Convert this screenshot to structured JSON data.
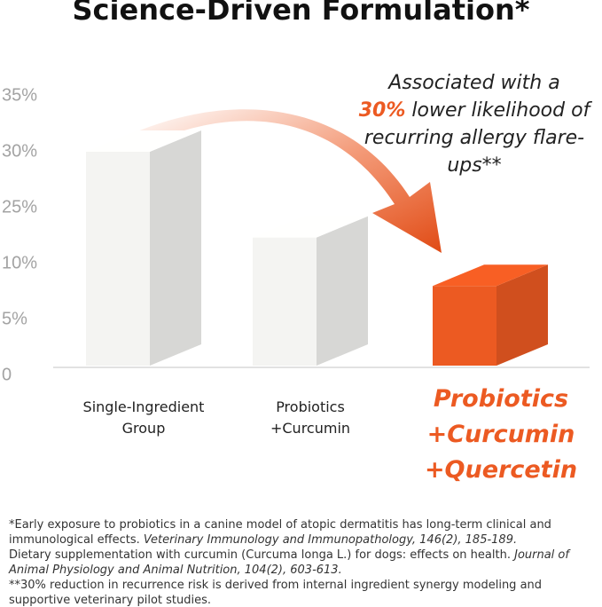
{
  "chart_data": {
    "type": "bar3d",
    "title": "Science-Driven Formulation*",
    "categories": [
      "Single-Ingredient Group",
      "Probiotics +Curcumin",
      "Probiotics +Curcumin +Quercetin"
    ],
    "values": [
      30,
      17,
      8
    ],
    "colors": [
      "#f4f4f2",
      "#f4f4f2",
      "#ec5a22"
    ],
    "ylim": [
      0,
      35
    ],
    "yticks": [
      0,
      {
        "value": 5,
        "label": "5%"
      },
      {
        "value": 10,
        "label": "10%"
      },
      {
        "value": 25,
        "label": "25%"
      },
      {
        "value": 30,
        "label": "30%"
      },
      {
        "value": 35,
        "label": "35%"
      }
    ],
    "annotation": {
      "before": "Associated with a",
      "highlight": "30%",
      "after": "lower likelihood of recurring allergy flare-ups**"
    }
  },
  "footnotes": [
    {
      "text": "*Early exposure to probiotics in a canine model of atopic dermatitis has long-term clinical and immunological effects.",
      "source": "Veterinary Immunology and Immunopathology, 146(2), 185-189."
    },
    {
      "text": "Dietary supplementation with curcumin (Curcuma longa L.) for dogs: effects on health.",
      "source": "Journal of Animal Physiology and Animal Nutrition, 104(2), 603-613."
    },
    {
      "text": "**30% reduction in recurrence risk is derived from internal ingredient synergy modeling and supportive veterinary pilot studies.",
      "source": null
    }
  ]
}
